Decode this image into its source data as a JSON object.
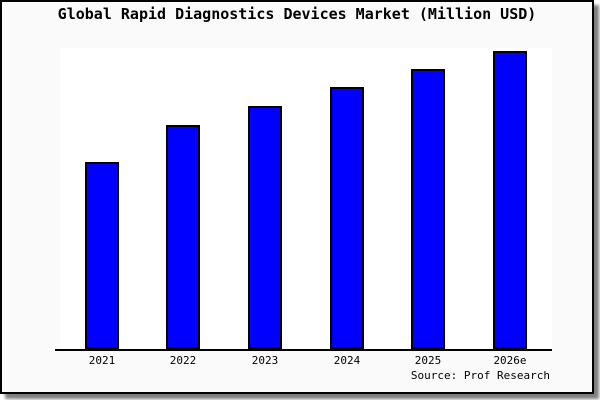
{
  "chart_data": {
    "type": "bar",
    "title": "Global Rapid Diagnostics Devices Market (Million USD)",
    "source_label": "Source: Prof Research",
    "categories": [
      "2021",
      "2022",
      "2023",
      "2024",
      "2025",
      "2026e"
    ],
    "values": [
      187,
      224,
      243,
      262,
      280,
      298
    ],
    "value_scale": "relative bar heights in pixels; chart displays no y-axis tick values",
    "xlabel": "",
    "ylabel": "",
    "ylim": [
      0,
      301
    ],
    "grid": false,
    "legend": false,
    "y_axis_visible": false,
    "bar_color": "#0000ff",
    "bar_border_color": "#000000",
    "plot_background": "#ffffff",
    "page_background": "#fafafa",
    "frame_border_color": "#000000",
    "axis_line_color": "#000000"
  }
}
